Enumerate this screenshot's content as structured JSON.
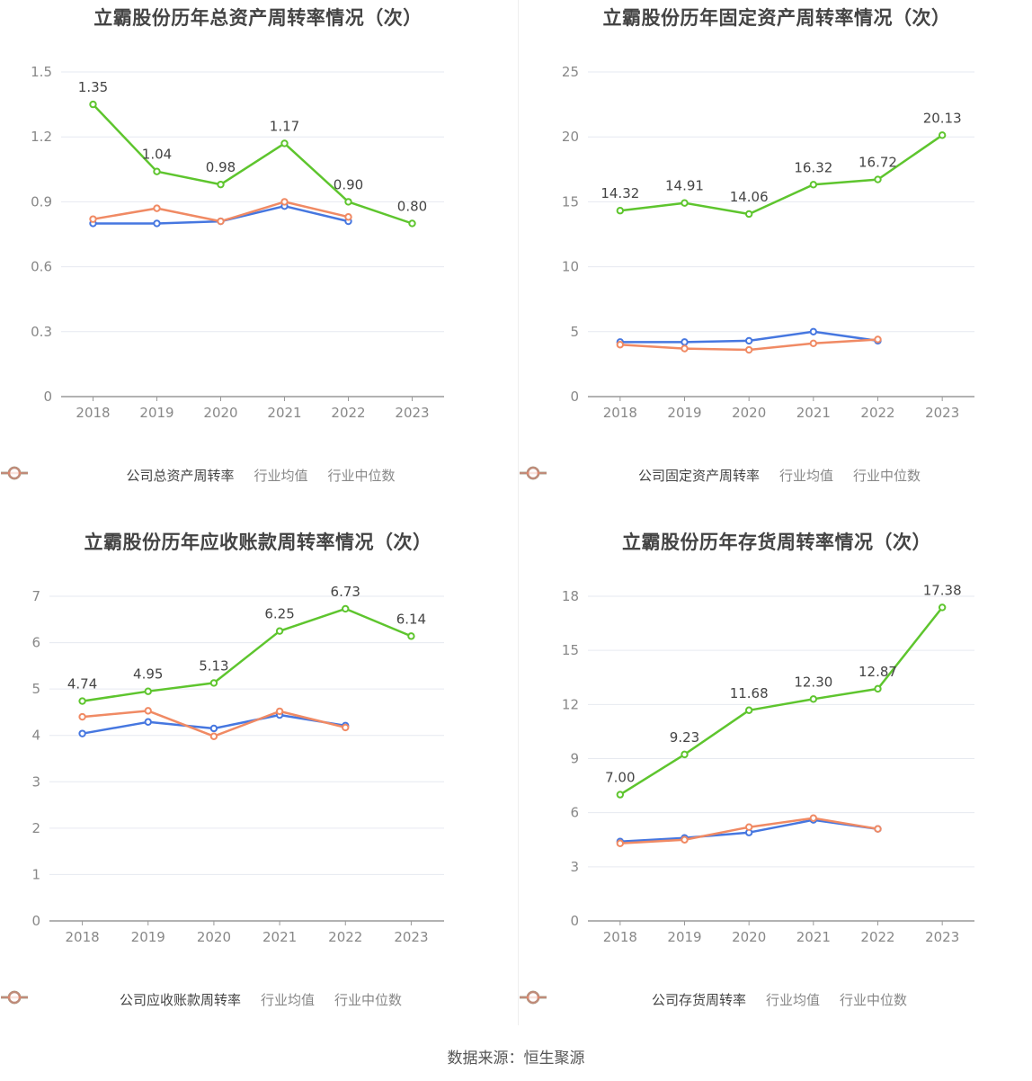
{
  "colors": {
    "company": "#5ec52e",
    "avg": "#4677e0",
    "median": "#f08a64",
    "grid": "#e6e9f0",
    "axis": "#999999"
  },
  "source": "数据来源：恒生聚源",
  "chart_data": [
    {
      "type": "line",
      "title": "立霸股份历年总资产周转率情况（次）",
      "categories": [
        "2018",
        "2019",
        "2020",
        "2021",
        "2022",
        "2023"
      ],
      "yticks": [
        "0",
        "0.3",
        "0.6",
        "0.9",
        "1.2",
        "1.5"
      ],
      "ylim": [
        0,
        1.5
      ],
      "series": [
        {
          "name": "公司总资产周转率",
          "key": "company",
          "values": [
            1.35,
            1.04,
            0.98,
            1.17,
            0.9,
            0.8
          ],
          "labels": [
            "1.35",
            "1.04",
            "0.98",
            "1.17",
            "0.90",
            "0.80"
          ]
        },
        {
          "name": "行业均值",
          "key": "avg",
          "values": [
            0.8,
            0.8,
            0.81,
            0.88,
            0.81,
            null
          ]
        },
        {
          "name": "行业中位数",
          "key": "median",
          "values": [
            0.82,
            0.87,
            0.81,
            0.9,
            0.83,
            null
          ]
        }
      ]
    },
    {
      "type": "line",
      "title": "立霸股份历年固定资产周转率情况（次）",
      "categories": [
        "2018",
        "2019",
        "2020",
        "2021",
        "2022",
        "2023"
      ],
      "yticks": [
        "0",
        "5",
        "10",
        "15",
        "20",
        "25"
      ],
      "ylim": [
        0,
        25
      ],
      "series": [
        {
          "name": "公司固定资产周转率",
          "key": "company",
          "values": [
            14.32,
            14.91,
            14.06,
            16.32,
            16.72,
            20.13
          ],
          "labels": [
            "14.32",
            "14.91",
            "14.06",
            "16.32",
            "16.72",
            "20.13"
          ]
        },
        {
          "name": "行业均值",
          "key": "avg",
          "values": [
            4.2,
            4.2,
            4.3,
            5.0,
            4.3,
            null
          ]
        },
        {
          "name": "行业中位数",
          "key": "median",
          "values": [
            4.0,
            3.7,
            3.6,
            4.1,
            4.4,
            null
          ]
        }
      ]
    },
    {
      "type": "line",
      "title": "立霸股份历年应收账款周转率情况（次）",
      "categories": [
        "2018",
        "2019",
        "2020",
        "2021",
        "2022",
        "2023"
      ],
      "yticks": [
        "0",
        "1",
        "2",
        "3",
        "4",
        "5",
        "6",
        "7"
      ],
      "ylim": [
        0,
        7
      ],
      "series": [
        {
          "name": "公司应收账款周转率",
          "key": "company",
          "values": [
            4.74,
            4.95,
            5.13,
            6.25,
            6.73,
            6.14
          ],
          "labels": [
            "4.74",
            "4.95",
            "5.13",
            "6.25",
            "6.73",
            "6.14"
          ]
        },
        {
          "name": "行业均值",
          "key": "avg",
          "values": [
            4.04,
            4.29,
            4.15,
            4.44,
            4.21,
            null
          ]
        },
        {
          "name": "行业中位数",
          "key": "median",
          "values": [
            4.4,
            4.53,
            3.98,
            4.52,
            4.17,
            null
          ]
        }
      ]
    },
    {
      "type": "line",
      "title": "立霸股份历年存货周转率情况（次）",
      "categories": [
        "2018",
        "2019",
        "2020",
        "2021",
        "2022",
        "2023"
      ],
      "yticks": [
        "0",
        "3",
        "6",
        "9",
        "12",
        "15",
        "18"
      ],
      "ylim": [
        0,
        18
      ],
      "series": [
        {
          "name": "公司存货周转率",
          "key": "company",
          "values": [
            7.0,
            9.23,
            11.68,
            12.3,
            12.87,
            17.38
          ],
          "labels": [
            "7.00",
            "9.23",
            "11.68",
            "12.30",
            "12.87",
            "17.38"
          ]
        },
        {
          "name": "行业均值",
          "key": "avg",
          "values": [
            4.4,
            4.6,
            4.9,
            5.6,
            5.1,
            null
          ]
        },
        {
          "name": "行业中位数",
          "key": "median",
          "values": [
            4.3,
            4.5,
            5.2,
            5.7,
            5.1,
            null
          ]
        }
      ]
    }
  ]
}
